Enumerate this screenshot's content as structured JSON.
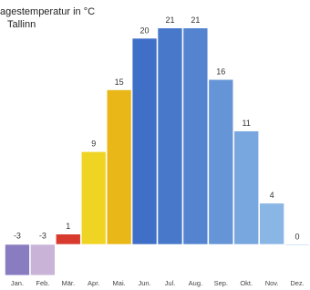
{
  "chart_data": {
    "type": "bar",
    "title": "agestemperatur in °C",
    "subtitle": "Tallinn",
    "categories": [
      "Jan.",
      "Feb.",
      "Mär.",
      "Apr.",
      "Mai.",
      "Jun.",
      "Jul.",
      "Aug.",
      "Sep.",
      "Okt.",
      "Nov.",
      "Dez."
    ],
    "values": [
      -3,
      -3,
      1,
      9,
      15,
      20,
      21,
      21,
      16,
      11,
      4,
      0
    ],
    "colors": [
      "#8a7cc0",
      "#c9b3d6",
      "#d83a2e",
      "#f0d424",
      "#e9b818",
      "#3f6fc6",
      "#4778ca",
      "#5484cf",
      "#6595d6",
      "#78a6de",
      "#8ab6e6",
      "#9cc4ec"
    ]
  }
}
